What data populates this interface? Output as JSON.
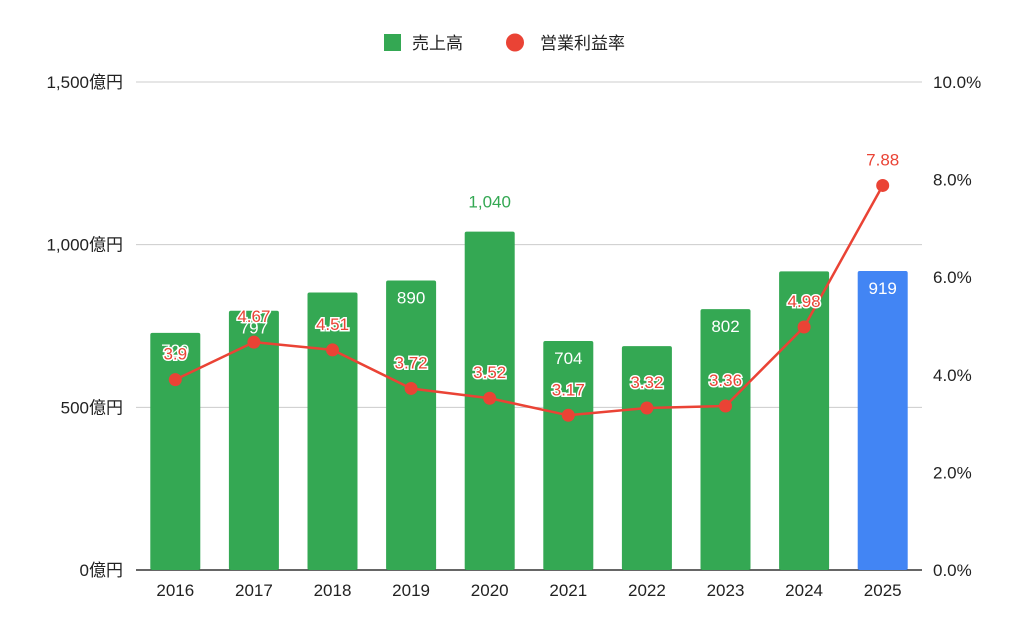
{
  "chart_data": {
    "type": "bar",
    "categories": [
      "2016",
      "2017",
      "2018",
      "2019",
      "2020",
      "2021",
      "2022",
      "2023",
      "2024",
      "2025"
    ],
    "series": [
      {
        "name": "売上高",
        "kind": "bar",
        "axis": "left",
        "values": [
          729,
          797,
          853,
          890,
          1040,
          704,
          688,
          802,
          918,
          919
        ],
        "labels": [
          "729",
          "797",
          "",
          "890",
          "1,040",
          "704",
          "",
          "802",
          "",
          "919"
        ],
        "colors": [
          "#34a853",
          "#34a853",
          "#34a853",
          "#34a853",
          "#34a853",
          "#34a853",
          "#34a853",
          "#34a853",
          "#34a853",
          "#4285f4"
        ]
      },
      {
        "name": "営業利益率",
        "kind": "line",
        "axis": "right",
        "values": [
          3.9,
          4.67,
          4.51,
          3.72,
          3.52,
          3.17,
          3.32,
          3.36,
          4.98,
          7.88
        ],
        "labels": [
          "3.9",
          "4.67",
          "4.51",
          "3.72",
          "3.52",
          "3.17",
          "3.32",
          "3.36",
          "4.98",
          "7.88"
        ],
        "color": "#ea4335"
      }
    ],
    "y_left": {
      "ylim": [
        0,
        1500
      ],
      "ticks": [
        0,
        500,
        1000,
        1500
      ],
      "tick_labels": [
        "0億円",
        "500億円",
        "1,000億円",
        "1,500億円"
      ]
    },
    "y_right": {
      "ylim": [
        0,
        10
      ],
      "ticks": [
        0,
        2,
        4,
        6,
        8,
        10
      ],
      "tick_labels": [
        "0.0%",
        "2.0%",
        "4.0%",
        "6.0%",
        "8.0%",
        "10.0%"
      ]
    },
    "legend": {
      "position": "top-center",
      "items": [
        "売上高",
        "営業利益率"
      ]
    },
    "grid": true,
    "colors": {
      "bar": "#34a853",
      "bar_highlight": "#4285f4",
      "line": "#ea4335",
      "grid": "#cccccc",
      "axis_text": "#222222"
    }
  }
}
